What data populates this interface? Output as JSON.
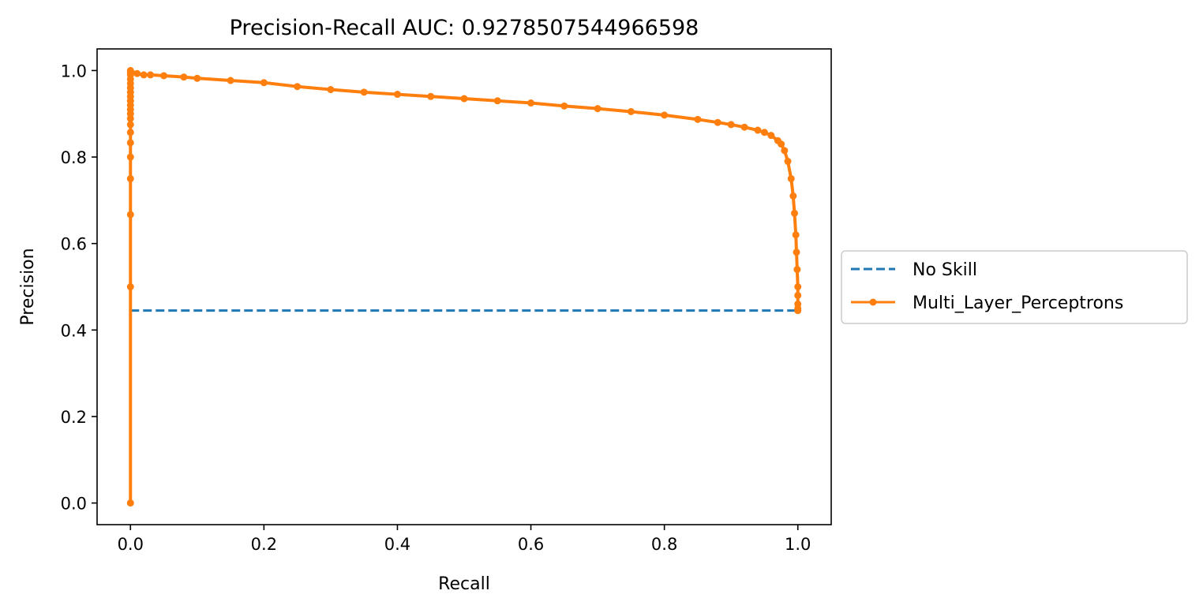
{
  "chart_data": {
    "type": "line",
    "title": "Precision-Recall AUC: 0.9278507544966598",
    "xlabel": "Recall",
    "ylabel": "Precision",
    "xlim": [
      -0.05,
      1.05
    ],
    "ylim": [
      -0.05,
      1.05
    ],
    "xticks": [
      0.0,
      0.2,
      0.4,
      0.6,
      0.8,
      1.0
    ],
    "yticks": [
      0.0,
      0.2,
      0.4,
      0.6,
      0.8,
      1.0
    ],
    "xtick_labels": [
      "0.0",
      "0.2",
      "0.4",
      "0.6",
      "0.8",
      "1.0"
    ],
    "ytick_labels": [
      "0.0",
      "0.2",
      "0.4",
      "0.6",
      "0.8",
      "1.0"
    ],
    "grid": false,
    "legend_position": "center-right-outside",
    "series": [
      {
        "name": "No Skill",
        "style": "dashed",
        "color": "#1f77b4",
        "x": [
          0.0,
          1.0
        ],
        "y": [
          0.445,
          0.445
        ]
      },
      {
        "name": "Multi_Layer_Perceptrons",
        "style": "solid-with-markers",
        "color": "#ff7f0e",
        "x": [
          0.0,
          0.0,
          0.0,
          0.0,
          0.0,
          0.0,
          0.0,
          0.0,
          0.0,
          0.0,
          0.0,
          0.0,
          0.0,
          0.0,
          0.0,
          0.0,
          0.0,
          0.0,
          0.0,
          0.0,
          0.0,
          0.01,
          0.02,
          0.03,
          0.05,
          0.08,
          0.1,
          0.15,
          0.2,
          0.25,
          0.3,
          0.35,
          0.4,
          0.45,
          0.5,
          0.55,
          0.6,
          0.65,
          0.7,
          0.75,
          0.8,
          0.85,
          0.88,
          0.9,
          0.92,
          0.94,
          0.95,
          0.96,
          0.97,
          0.975,
          0.98,
          0.985,
          0.99,
          0.993,
          0.995,
          0.997,
          0.998,
          0.999,
          1.0,
          1.0,
          1.0,
          1.0,
          1.0
        ],
        "y": [
          0.0,
          0.5,
          0.667,
          0.75,
          0.8,
          0.833,
          0.857,
          0.875,
          0.889,
          0.9,
          0.91,
          0.92,
          0.93,
          0.94,
          0.95,
          0.96,
          0.97,
          0.98,
          0.99,
          0.995,
          1.0,
          0.993,
          0.99,
          0.99,
          0.988,
          0.985,
          0.982,
          0.977,
          0.972,
          0.963,
          0.956,
          0.95,
          0.945,
          0.94,
          0.935,
          0.93,
          0.925,
          0.918,
          0.912,
          0.905,
          0.897,
          0.887,
          0.88,
          0.875,
          0.869,
          0.862,
          0.857,
          0.85,
          0.838,
          0.83,
          0.815,
          0.79,
          0.75,
          0.71,
          0.67,
          0.62,
          0.58,
          0.54,
          0.5,
          0.48,
          0.46,
          0.45,
          0.445
        ]
      }
    ]
  }
}
